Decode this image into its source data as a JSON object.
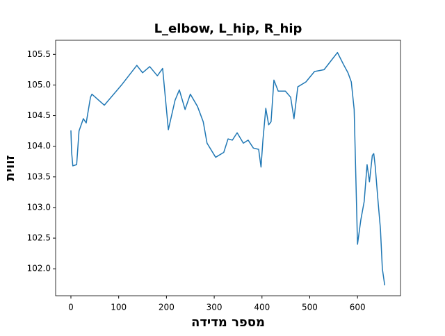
{
  "chart_data": {
    "type": "line",
    "title": "L_elbow, L_hip, R_hip",
    "x_label": "מספר מדידה",
    "y_label": "זווית",
    "x": [
      0,
      1.5,
      4,
      12,
      17,
      26,
      32,
      41,
      44,
      70,
      106,
      138,
      150,
      165,
      181,
      192,
      204,
      218,
      227,
      239,
      250,
      265,
      277,
      285,
      303,
      320,
      329,
      338,
      348,
      361,
      371,
      382,
      393,
      398,
      402,
      408,
      414,
      419,
      425,
      434,
      449,
      460,
      467,
      475,
      492,
      510,
      530,
      545,
      558,
      571,
      580,
      587,
      593,
      600,
      607,
      614,
      620,
      625,
      631,
      634,
      637,
      643,
      648,
      652,
      657
    ],
    "series": [
      {
        "name": "L_elbow, L_hip, R_hip",
        "color": "#1f77b4",
        "values": [
          104.26,
          103.9,
          103.68,
          103.7,
          104.25,
          104.45,
          104.38,
          104.8,
          104.85,
          104.67,
          105.0,
          105.32,
          105.2,
          105.3,
          105.15,
          105.27,
          104.27,
          104.75,
          104.92,
          104.6,
          104.85,
          104.65,
          104.4,
          104.05,
          103.82,
          103.9,
          104.12,
          104.1,
          104.22,
          104.05,
          104.1,
          103.97,
          103.95,
          103.66,
          104.1,
          104.62,
          104.35,
          104.4,
          105.08,
          104.9,
          104.9,
          104.8,
          104.45,
          104.97,
          105.05,
          105.22,
          105.25,
          105.4,
          105.53,
          105.33,
          105.2,
          105.05,
          104.6,
          102.4,
          102.8,
          103.1,
          103.7,
          103.42,
          103.85,
          103.88,
          103.68,
          103.1,
          102.65,
          102.0,
          101.73
        ]
      }
    ],
    "xlim": [
      -32,
      690
    ],
    "ylim": [
      101.56,
      105.73
    ],
    "xticks": [
      0,
      100,
      200,
      300,
      400,
      500,
      600
    ],
    "yticks": [
      {
        "value": 102,
        "label": "102.0"
      },
      102.5,
      {
        "value": 103,
        "label": "103.0"
      },
      103.5,
      {
        "value": 104,
        "label": "104.0"
      },
      104.5,
      {
        "value": 105,
        "label": "105.0"
      },
      105.5
    ]
  }
}
